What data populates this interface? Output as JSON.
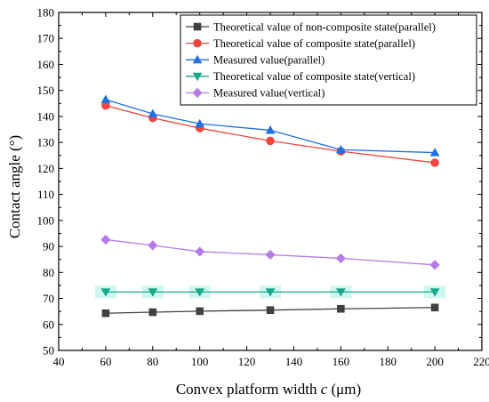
{
  "chart_data": {
    "type": "line",
    "xlabel_main": "Convex platform width ",
    "xlabel_var": "c",
    "xlabel_unit": " (μm)",
    "ylabel": "Contact angle (°)",
    "xlim": [
      40,
      220
    ],
    "ylim": [
      50,
      180
    ],
    "x_ticks": [
      "40",
      "60",
      "80",
      "100",
      "120",
      "140",
      "160",
      "180",
      "200",
      "220"
    ],
    "y_ticks": [
      "50",
      "60",
      "70",
      "80",
      "90",
      "100",
      "110",
      "120",
      "130",
      "140",
      "150",
      "160",
      "170",
      "180"
    ],
    "grid": false,
    "legend_position": "top-right",
    "x": [
      60,
      80,
      100,
      130,
      160,
      200
    ],
    "series": [
      {
        "name": "Theoretical value of non-composite state(parallel)",
        "marker": "square",
        "color": "#404040",
        "values": [
          64.3,
          64.7,
          65.1,
          65.5,
          66.0,
          66.5
        ]
      },
      {
        "name": "Theoretical value of composite state(parallel)",
        "marker": "circle",
        "color": "#f0443c",
        "values": [
          144.2,
          139.4,
          135.5,
          130.6,
          126.6,
          122.2
        ]
      },
      {
        "name": "Measured value(parallel)",
        "marker": "triangle-up",
        "color": "#1f70e0",
        "values": [
          146.5,
          141.0,
          137.2,
          134.7,
          127.2,
          126.1
        ]
      },
      {
        "name": "Theoretical value of composite state(vertical)",
        "marker": "triangle-down",
        "color": "#1aa88a",
        "values": [
          72.5,
          72.5,
          72.5,
          72.5,
          72.5,
          72.5
        ]
      },
      {
        "name": "Measured value(vertical)",
        "marker": "diamond",
        "color": "#b57ce8",
        "values": [
          92.6,
          90.4,
          88.0,
          86.8,
          85.4,
          82.9
        ]
      }
    ]
  }
}
